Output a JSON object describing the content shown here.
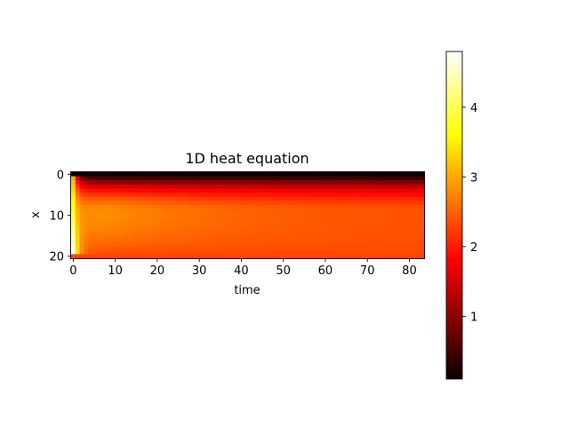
{
  "chart_data": {
    "type": "heatmap",
    "title": "1D heat equation",
    "xlabel": "time",
    "ylabel": "x",
    "grid": false,
    "colormap": "hot",
    "x_range": [
      0,
      83
    ],
    "y_range": [
      0,
      20
    ],
    "x_ticks": [
      0,
      10,
      20,
      30,
      40,
      50,
      60,
      70,
      80
    ],
    "y_ticks": [
      0,
      10,
      20
    ],
    "value_range": [
      0.1,
      4.8
    ],
    "colorbar_ticks": [
      1,
      2,
      3,
      4
    ],
    "boundary_values": {
      "x_0": 0.1,
      "x_20": 2.3
    },
    "initial_condition_peak": 4.8,
    "steady_state_profile_at_time_83": [
      0.1,
      0.45,
      0.9,
      1.3,
      1.6,
      1.85,
      2.05,
      2.2,
      2.3,
      2.35,
      2.35,
      2.35,
      2.35,
      2.35,
      2.35,
      2.35,
      2.35,
      2.34,
      2.33,
      2.32,
      2.3
    ]
  }
}
